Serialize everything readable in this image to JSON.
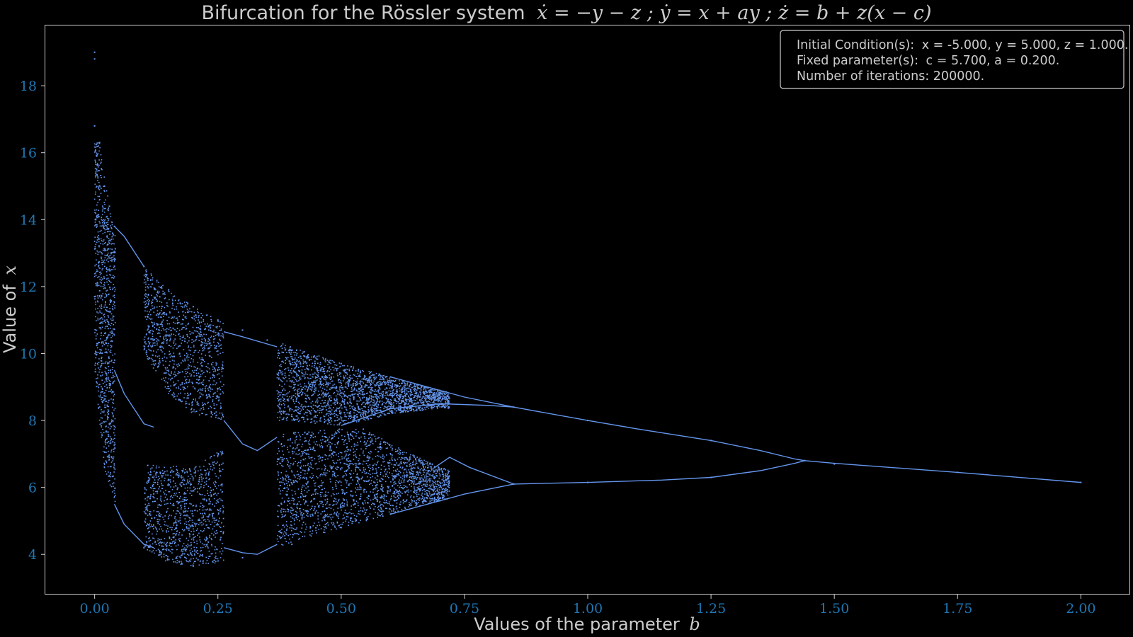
{
  "chart_data": {
    "type": "scatter",
    "title": "Bifurcation for the Rössler system",
    "title_equation": "ẋ = −y − z ; ẏ = x + ay ; ż = b + z(x − c)",
    "xlabel_text": "Values of the parameter",
    "xlabel_symbol": "b",
    "ylabel_text": "Value of",
    "ylabel_symbol": "x",
    "xlim": [
      -0.1,
      2.1
    ],
    "ylim": [
      2.8,
      19.8
    ],
    "xticks": [
      {
        "value": 0.0,
        "label": "0.00"
      },
      {
        "value": 0.25,
        "label": "0.25"
      },
      {
        "value": 0.5,
        "label": "0.50"
      },
      {
        "value": 0.75,
        "label": "0.75"
      },
      {
        "value": 1.0,
        "label": "1.00"
      },
      {
        "value": 1.25,
        "label": "1.25"
      },
      {
        "value": 1.5,
        "label": "1.50"
      },
      {
        "value": 1.75,
        "label": "1.75"
      },
      {
        "value": 2.0,
        "label": "2.00"
      }
    ],
    "yticks": [
      {
        "value": 4,
        "label": "4"
      },
      {
        "value": 6,
        "label": "6"
      },
      {
        "value": 8,
        "label": "8"
      },
      {
        "value": 10,
        "label": "10"
      },
      {
        "value": 12,
        "label": "12"
      },
      {
        "value": 14,
        "label": "14"
      },
      {
        "value": 16,
        "label": "16"
      },
      {
        "value": 18,
        "label": "18"
      }
    ],
    "legend": {
      "placement": "top-right",
      "line1_prefix": "Initial Condition(s):",
      "line1_values": "x = -5.000, y = 5.000, z = 1.000.",
      "line2_prefix": "Fixed parameter(s):",
      "line2_values": "c = 5.700, a = 0.200.",
      "line3": "Number of iterations: 200000."
    },
    "grid": false,
    "colors": {
      "background": "#000000",
      "points": "#6495ED",
      "tick_labels": "#1f77b4",
      "text": "#cccccc",
      "axes": "#cccccc"
    },
    "series": [
      {
        "values_description_points": [
          [
            0.0,
            19.0
          ],
          [
            0.0,
            18.8
          ],
          [
            0.0,
            16.8
          ],
          [
            0.0,
            11.7
          ],
          [
            0.01,
            16.3
          ],
          [
            0.02,
            15.0
          ],
          [
            0.03,
            14.4
          ],
          [
            0.04,
            13.8
          ],
          [
            0.1,
            12.6
          ],
          [
            0.15,
            11.9
          ],
          [
            0.2,
            11.4
          ],
          [
            0.25,
            11.0
          ],
          [
            0.3,
            10.7
          ],
          [
            0.35,
            10.4
          ],
          [
            0.4,
            10.1
          ],
          [
            0.5,
            9.7
          ],
          [
            0.6,
            9.3
          ],
          [
            0.7,
            8.9
          ],
          [
            0.85,
            8.4
          ],
          [
            1.0,
            8.0
          ],
          [
            1.25,
            7.4
          ],
          [
            1.44,
            6.8
          ],
          [
            1.5,
            6.7
          ],
          [
            1.75,
            6.45
          ],
          [
            2.0,
            6.15
          ],
          [
            0.85,
            6.1
          ],
          [
            1.0,
            6.15
          ],
          [
            1.25,
            6.3
          ],
          [
            1.44,
            6.8
          ],
          [
            0.1,
            4.2
          ],
          [
            0.2,
            3.65
          ],
          [
            0.3,
            3.9
          ],
          [
            0.4,
            4.3
          ],
          [
            0.5,
            4.8
          ],
          [
            0.6,
            5.2
          ],
          [
            0.7,
            5.6
          ],
          [
            0.85,
            6.1
          ]
        ]
      }
    ]
  }
}
